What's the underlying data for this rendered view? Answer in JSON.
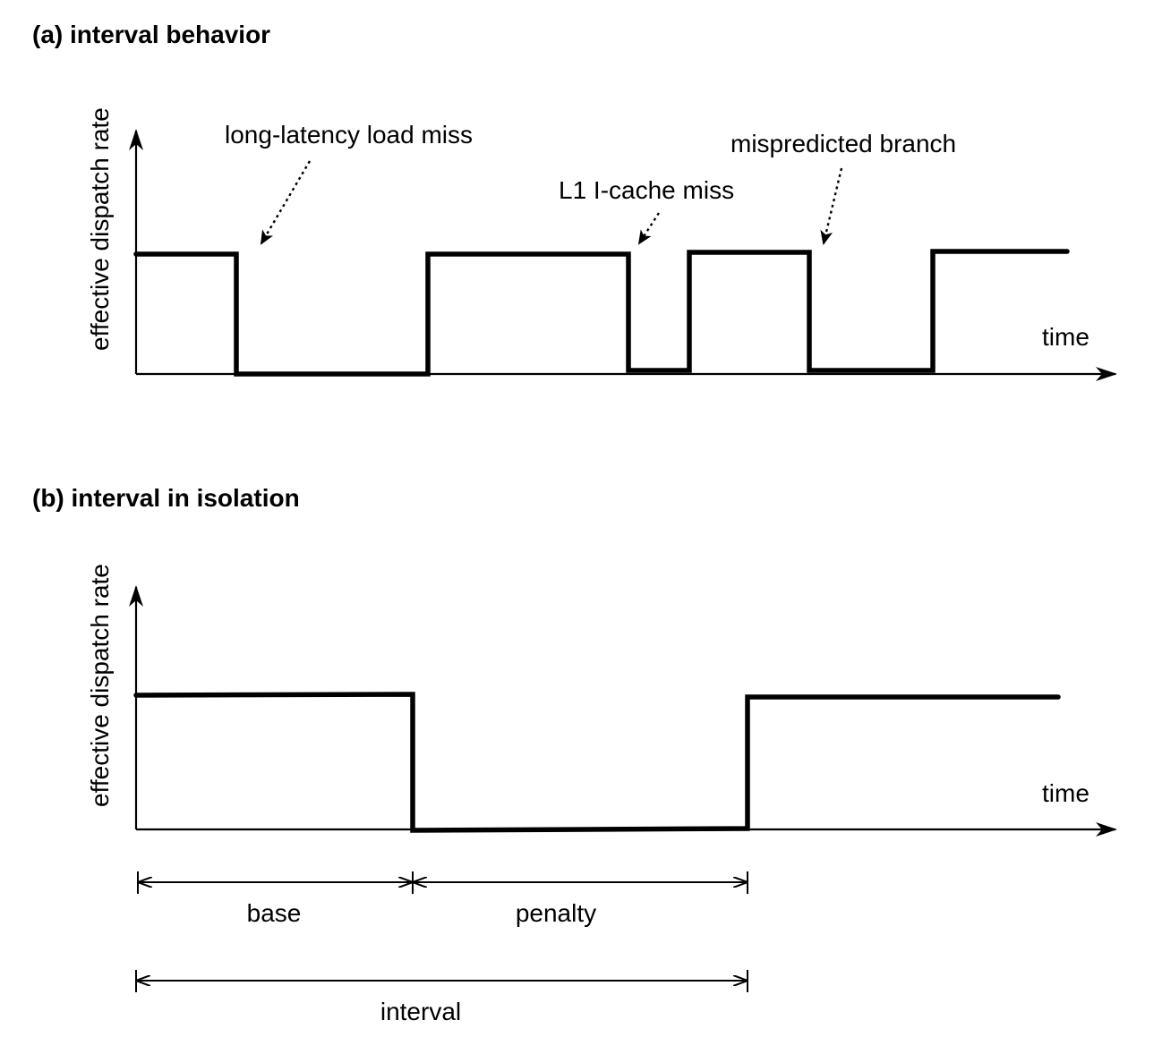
{
  "panel_a": {
    "title": "(a) interval behavior",
    "y_axis_label": "effective dispatch rate",
    "x_axis_label": "time",
    "annotations": {
      "load_miss": "long-latency load miss",
      "icache_miss": "L1 I-cache miss",
      "branch": "mispredicted branch"
    }
  },
  "panel_b": {
    "title": "(b) interval in isolation",
    "y_axis_label": "effective dispatch rate",
    "x_axis_label": "time",
    "dimensions": {
      "base": "base",
      "penalty": "penalty",
      "interval": "interval"
    }
  },
  "colors": {
    "ink": "#000000",
    "background": "#ffffff"
  }
}
